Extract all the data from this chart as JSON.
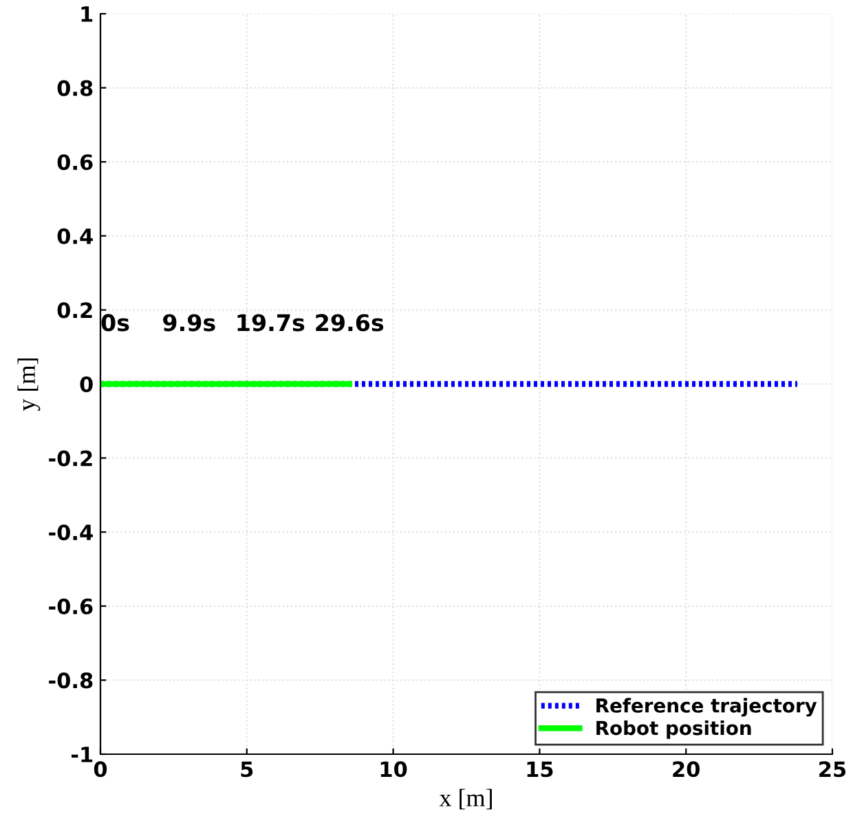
{
  "chart_data": {
    "type": "line",
    "xlabel": "x [m]",
    "ylabel": "y [m]",
    "series": [
      {
        "name": "Reference trajectory",
        "color": "#0000ff",
        "x": [
          0,
          23.8
        ],
        "values": [
          0,
          0
        ],
        "line_style": "dotted"
      },
      {
        "name": "Robot position",
        "color": "#00ff00",
        "x": [
          0,
          8.5
        ],
        "values": [
          0,
          0
        ],
        "line_style": "solid"
      }
    ],
    "annotations": [
      {
        "text": "0s",
        "x": 0,
        "y": 0
      },
      {
        "text": "9.9s",
        "x": 2.1,
        "y": 0
      },
      {
        "text": "19.7s",
        "x": 4.6,
        "y": 0
      },
      {
        "text": "29.6s",
        "x": 7.3,
        "y": 0
      }
    ],
    "xlim": [
      0,
      25
    ],
    "ylim": [
      -1,
      1
    ],
    "xticks": [
      0,
      5,
      10,
      15,
      20,
      25
    ],
    "yticks": [
      -1,
      -0.8,
      -0.6,
      -0.4,
      -0.2,
      0,
      0.2,
      0.4,
      0.6,
      0.8,
      1
    ],
    "grid": true,
    "legend": "bottom right",
    "marker": "none"
  }
}
